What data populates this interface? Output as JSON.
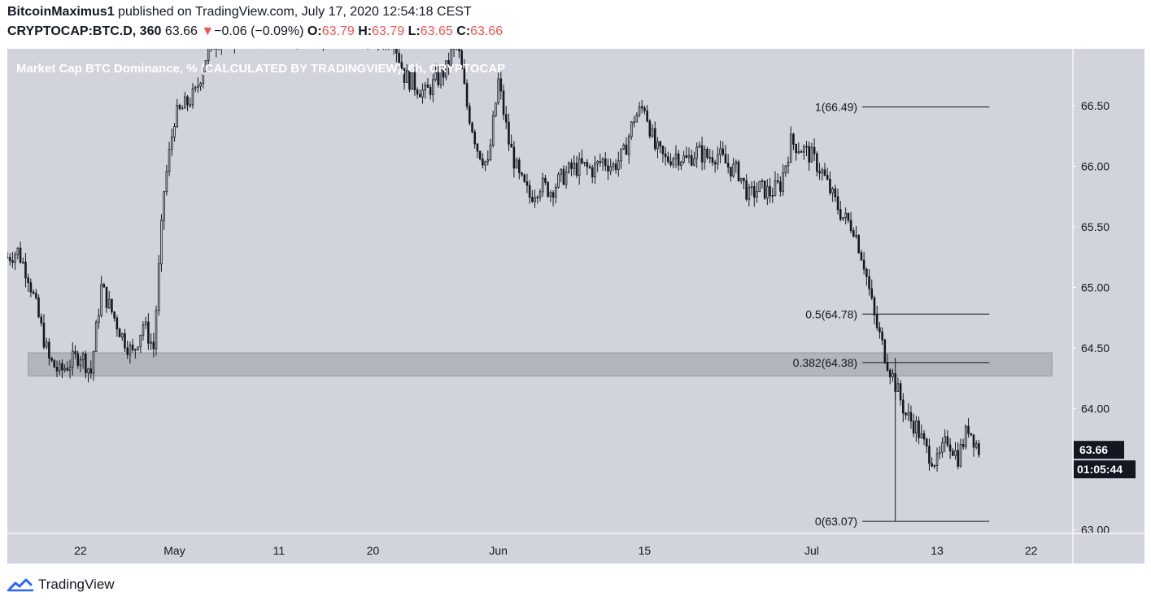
{
  "header": {
    "author": "BitcoinMaximus1",
    "published_text": "published on TradingView.com, July 17, 2020 12:54:18 CEST",
    "symbol": "CRYPTOCAP:BTC.D, 360",
    "last": "63.66",
    "change_arrow": "▼",
    "change": "−0.06 (−0.09%)",
    "o_label": "O:",
    "o_value": "63.79",
    "h_label": "H:",
    "h_value": "63.79",
    "l_label": "L:",
    "l_value": "63.65",
    "c_label": "C:",
    "c_value": "63.66"
  },
  "footer": {
    "brand": "TradingView",
    "logo_icon": "tradingview-cloud-logo-icon"
  },
  "colors": {
    "plot_bg": "#d1d4dc",
    "candle": "#131722",
    "zone_fill": "#b2b5be",
    "price_tag_bg": "#131722",
    "accent_blue": "#2962ff",
    "red": "#ef5350"
  },
  "chart_data": {
    "type": "candlestick",
    "title": "Market Cap BTC Dominance, % (CALCULATED BY TRADINGVIEW), 6h, CRYPTOCAP",
    "x_tick_labels": [
      "22",
      "May",
      "11",
      "20",
      "Jun",
      "15",
      "Jul",
      "13",
      "22"
    ],
    "x_ticks": [
      {
        "label": "22",
        "date": "2020-04-22"
      },
      {
        "label": "May",
        "date": "2020-05-01"
      },
      {
        "label": "11",
        "date": "2020-05-11"
      },
      {
        "label": "20",
        "date": "2020-05-20"
      },
      {
        "label": "Jun",
        "date": "2020-06-01"
      },
      {
        "label": "15",
        "date": "2020-06-15"
      },
      {
        "label": "Jul",
        "date": "2020-07-01"
      },
      {
        "label": "13",
        "date": "2020-07-13"
      },
      {
        "label": "22",
        "date": "2020-07-22"
      }
    ],
    "xlim": [
      "2020-04-15",
      "2020-07-26"
    ],
    "y_tick_labels": [
      "66.50",
      "66.00",
      "65.50",
      "65.00",
      "64.50",
      "64.00",
      "63.00"
    ],
    "ylim": [
      62.97,
      66.97
    ],
    "grid": false,
    "path": [
      [
        "2020-04-15",
        65.25
      ],
      [
        "2020-04-16",
        65.3
      ],
      [
        "2020-04-17",
        65.1
      ],
      [
        "2020-04-18",
        64.75
      ],
      [
        "2020-04-19",
        64.4
      ],
      [
        "2020-04-20",
        64.3
      ],
      [
        "2020-04-21",
        64.38
      ],
      [
        "2020-04-22",
        64.45
      ],
      [
        "2020-04-23",
        64.3
      ],
      [
        "2020-04-24",
        65.0
      ],
      [
        "2020-04-25",
        64.8
      ],
      [
        "2020-04-26",
        64.6
      ],
      [
        "2020-04-27",
        64.45
      ],
      [
        "2020-04-28",
        64.7
      ],
      [
        "2020-04-29",
        64.5
      ],
      [
        "2020-04-30",
        65.8
      ],
      [
        "2020-05-01",
        66.4
      ],
      [
        "2020-05-02",
        66.5
      ],
      [
        "2020-05-03",
        66.6
      ],
      [
        "2020-05-04",
        66.9
      ],
      [
        "2020-05-05",
        67.05
      ],
      [
        "2020-05-08",
        67.1
      ],
      [
        "2020-05-11",
        67.1
      ],
      [
        "2020-05-17",
        67.1
      ],
      [
        "2020-05-22",
        67.05
      ],
      [
        "2020-05-23",
        66.75
      ],
      [
        "2020-05-25",
        66.6
      ],
      [
        "2020-05-26",
        66.7
      ],
      [
        "2020-05-27",
        66.8
      ],
      [
        "2020-05-28",
        67.05
      ],
      [
        "2020-05-29",
        66.5
      ],
      [
        "2020-05-30",
        66.15
      ],
      [
        "2020-05-31",
        66.0
      ],
      [
        "2020-06-01",
        66.7
      ],
      [
        "2020-06-02",
        66.2
      ],
      [
        "2020-06-03",
        65.9
      ],
      [
        "2020-06-04",
        65.75
      ],
      [
        "2020-06-05",
        65.85
      ],
      [
        "2020-06-06",
        65.8
      ],
      [
        "2020-06-07",
        65.9
      ],
      [
        "2020-06-08",
        65.98
      ],
      [
        "2020-06-09",
        66.0
      ],
      [
        "2020-06-10",
        65.97
      ],
      [
        "2020-06-11",
        66.05
      ],
      [
        "2020-06-12",
        66.0
      ],
      [
        "2020-06-13",
        66.1
      ],
      [
        "2020-06-14",
        66.4
      ],
      [
        "2020-06-15",
        66.5
      ],
      [
        "2020-06-16",
        66.15
      ],
      [
        "2020-06-17",
        66.05
      ],
      [
        "2020-06-18",
        66.1
      ],
      [
        "2020-06-19",
        66.05
      ],
      [
        "2020-06-20",
        66.12
      ],
      [
        "2020-06-21",
        66.08
      ],
      [
        "2020-06-22",
        66.1
      ],
      [
        "2020-06-23",
        66.0
      ],
      [
        "2020-06-24",
        65.95
      ],
      [
        "2020-06-25",
        65.75
      ],
      [
        "2020-06-26",
        65.82
      ],
      [
        "2020-06-27",
        65.78
      ],
      [
        "2020-06-28",
        65.85
      ],
      [
        "2020-06-29",
        66.2
      ],
      [
        "2020-06-30",
        66.15
      ],
      [
        "2020-07-01",
        66.08
      ],
      [
        "2020-07-02",
        65.95
      ],
      [
        "2020-07-03",
        65.75
      ],
      [
        "2020-07-04",
        65.58
      ],
      [
        "2020-07-05",
        65.5
      ],
      [
        "2020-07-06",
        65.2
      ],
      [
        "2020-07-07",
        64.75
      ],
      [
        "2020-07-08",
        64.45
      ],
      [
        "2020-07-09",
        64.2
      ],
      [
        "2020-07-10",
        63.95
      ],
      [
        "2020-07-11",
        63.85
      ],
      [
        "2020-07-12",
        63.65
      ],
      [
        "2020-07-13",
        63.55
      ],
      [
        "2020-07-14",
        63.75
      ],
      [
        "2020-07-15",
        63.6
      ],
      [
        "2020-07-16",
        63.85
      ],
      [
        "2020-07-17",
        63.66
      ]
    ],
    "wick_spike": {
      "date": "2020-07-09",
      "low": 63.07,
      "high": 64.42
    },
    "horizontal_zone": {
      "y_min": 64.27,
      "y_max": 64.46,
      "x_start": "2020-04-17",
      "x_end": "2020-07-24"
    },
    "fibonacci": [
      {
        "label": "1(66.49)",
        "value": 66.49
      },
      {
        "label": "0.5(64.78)",
        "value": 64.78
      },
      {
        "label": "0.382(64.38)",
        "value": 64.38
      },
      {
        "label": "0(63.07)",
        "value": 63.07
      }
    ],
    "fib_line_range": [
      "2020-06-30",
      "2020-07-18"
    ],
    "last_price": {
      "label": "63.66",
      "value": 63.66
    },
    "countdown": "01:05:44"
  }
}
